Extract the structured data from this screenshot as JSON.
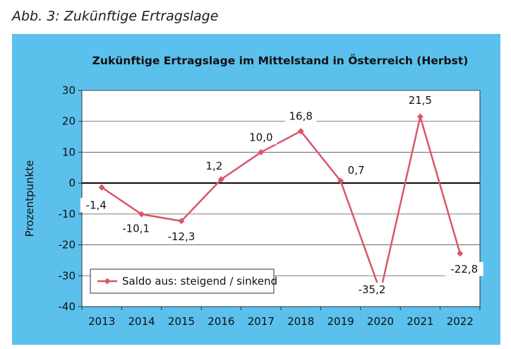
{
  "caption": "Abb. 3: Zukünftige Ertragslage",
  "colors": {
    "panel_background": "#5bc0ec",
    "plot_background": "#ffffff",
    "series_line": "#d9566b",
    "grid": "#555555"
  },
  "chart_data": {
    "type": "line",
    "title": "Zukünftige Ertragslage im Mittelstand in Österreich (Herbst)",
    "xlabel": "",
    "ylabel": "Prozentpunkte",
    "ylim": [
      -40,
      30
    ],
    "yticks": [
      "30",
      "20",
      "10",
      "0",
      "-10",
      "-20",
      "-30",
      "-40"
    ],
    "categories": [
      "2013",
      "2014",
      "2015",
      "2016",
      "2017",
      "2018",
      "2019",
      "2020",
      "2021",
      "2022"
    ],
    "grid": true,
    "legend_position": "bottom-left",
    "series": [
      {
        "name": "Saldo aus: steigend / sinkend",
        "marker": "diamond",
        "values": [
          -1.4,
          -10.1,
          -12.3,
          1.2,
          10.0,
          16.8,
          0.7,
          -35.2,
          21.5,
          -22.8
        ],
        "labels": [
          "-1,4",
          "-10,1",
          "-12,3",
          "1,2",
          "10,0",
          "16,8",
          "0,7",
          "-35,2",
          "21,5",
          "-22,8"
        ]
      }
    ]
  }
}
